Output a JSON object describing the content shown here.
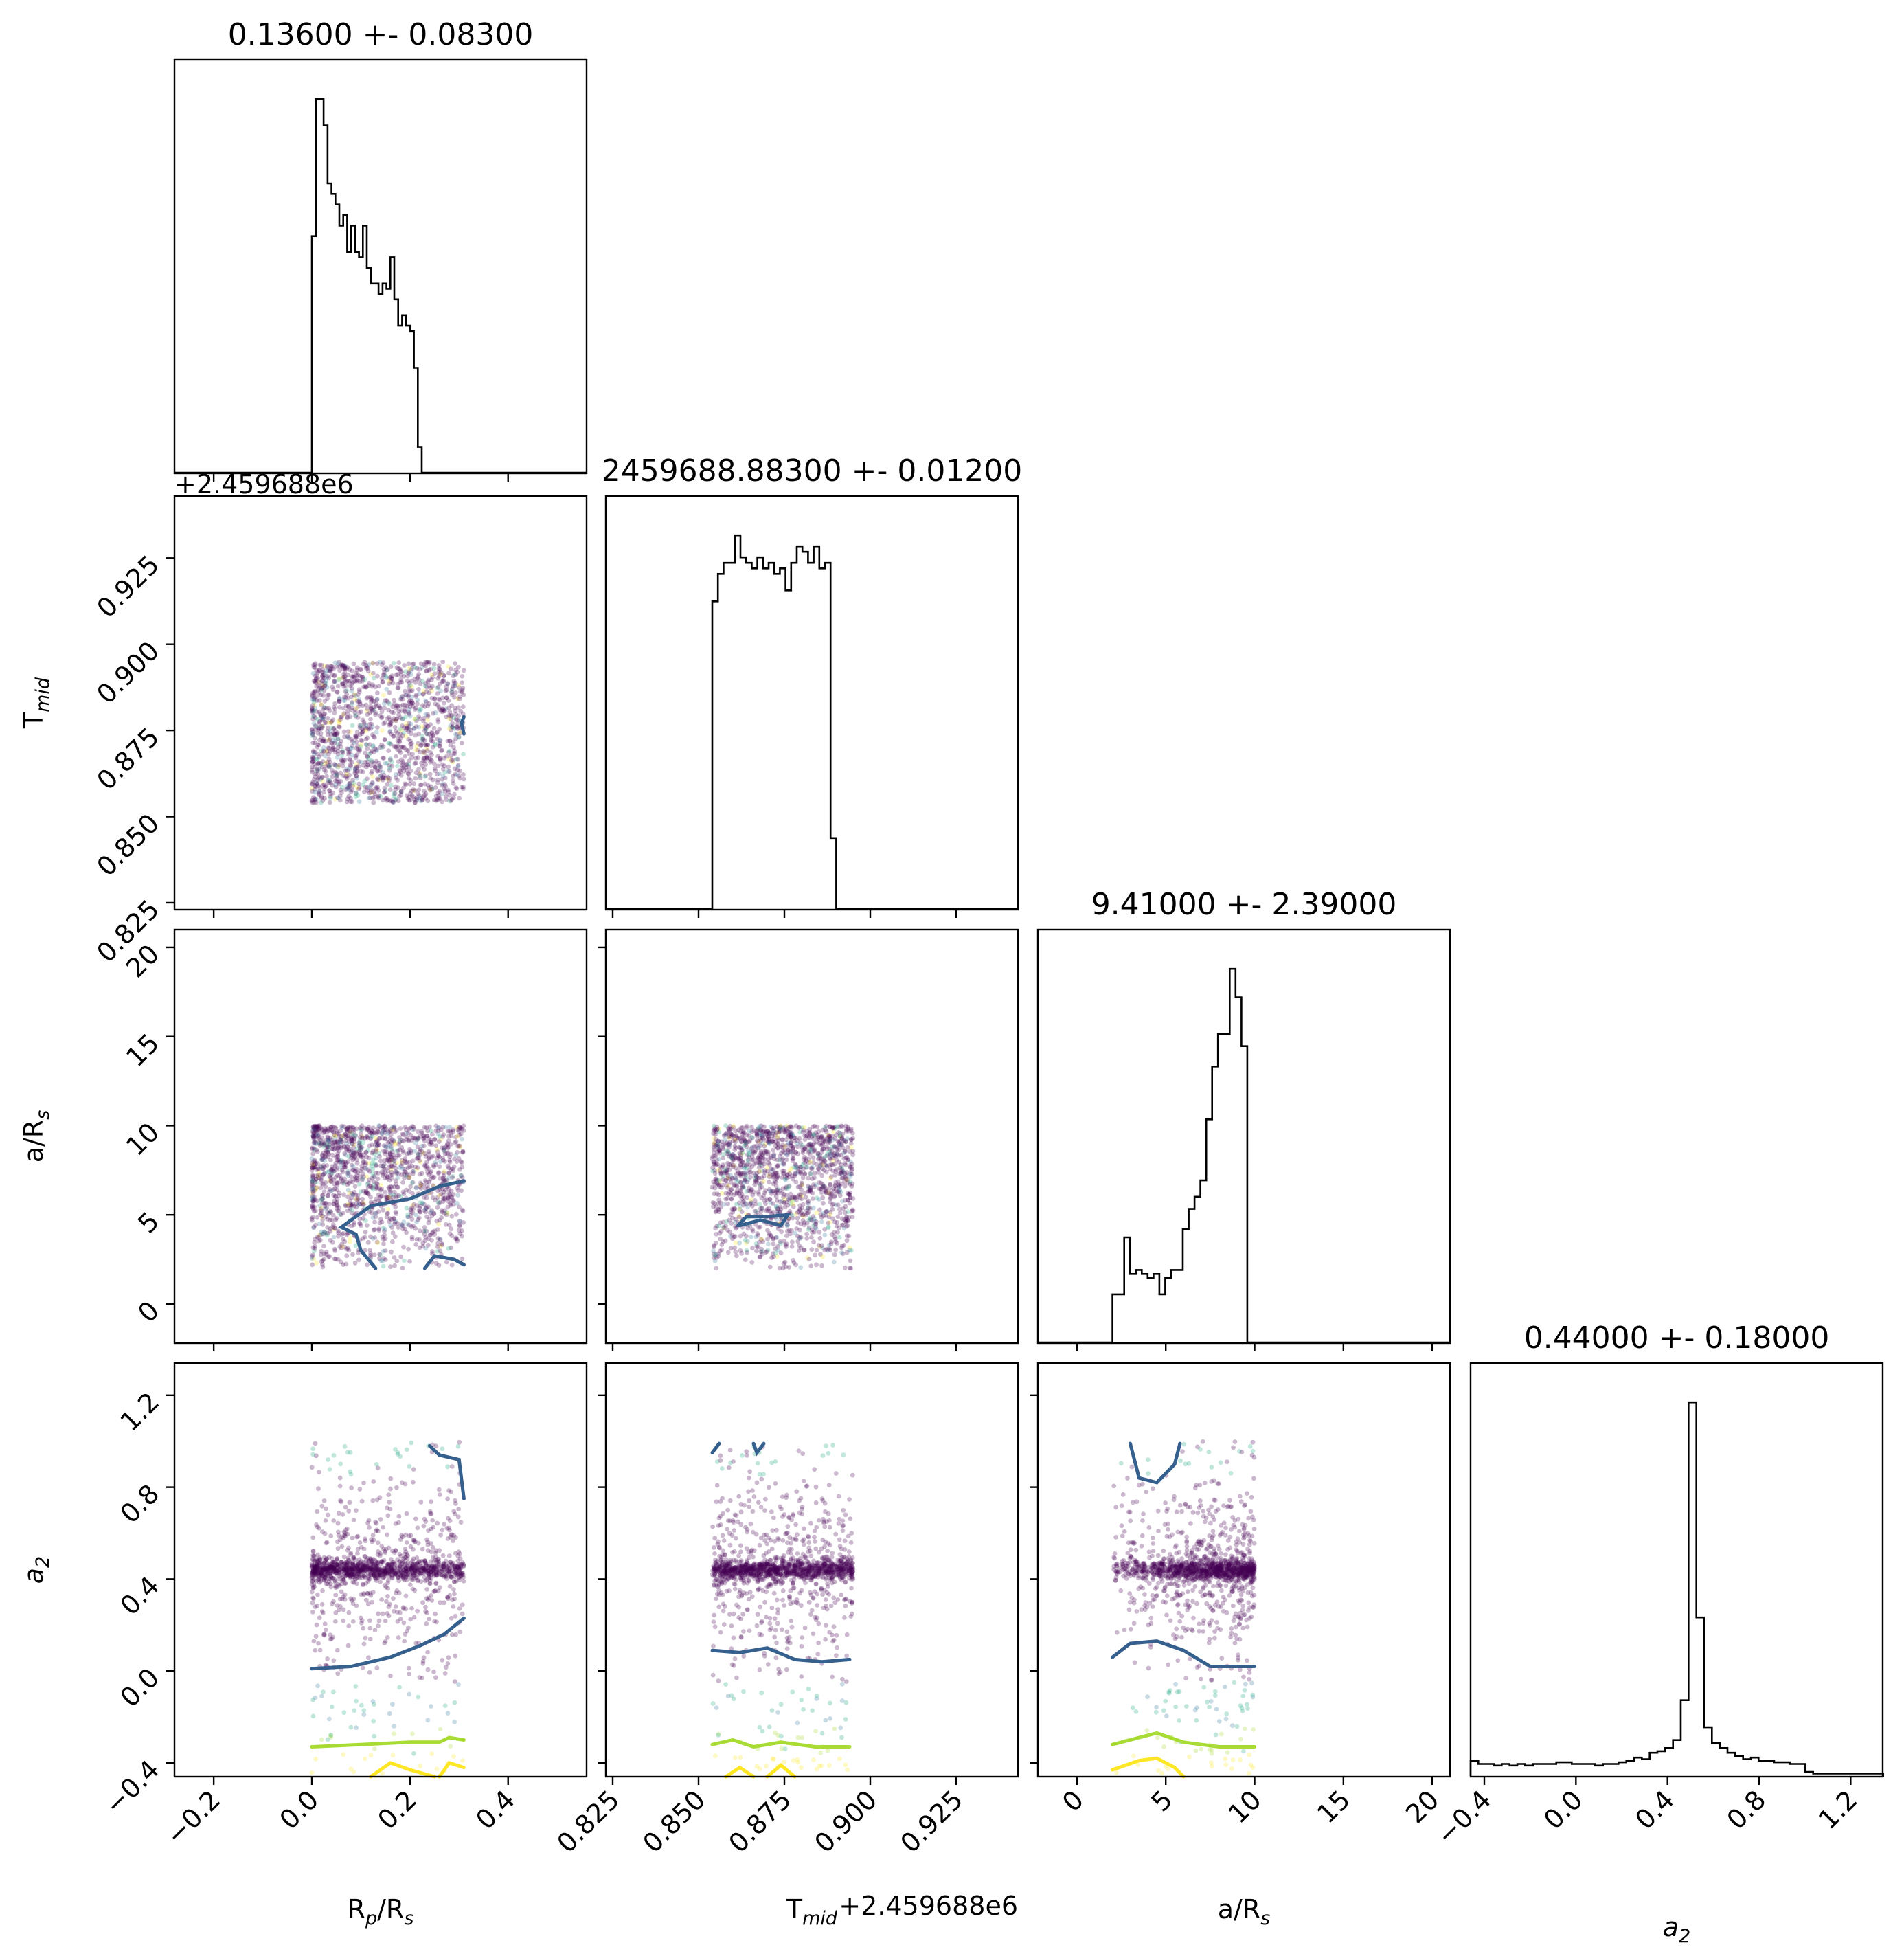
{
  "chart_data": {
    "type": "corner",
    "parameters": [
      {
        "key": "rprs",
        "label_main": "R",
        "label_sub": "p",
        "label_tail": "/R",
        "label_sub2": "s",
        "range": [
          -0.28,
          0.56
        ],
        "ticks": [
          -0.2,
          0.0,
          0.2,
          0.4
        ],
        "tick_labels": [
          "−0.2",
          "0.0",
          "0.2",
          "0.4"
        ],
        "offset_text": "",
        "samples_range": [
          0.0,
          0.31
        ]
      },
      {
        "key": "tmid",
        "label_main": "T",
        "label_sub": "mid",
        "label_tail": "",
        "label_sub2": "",
        "range": [
          0.823,
          0.943
        ],
        "ticks": [
          0.825,
          0.85,
          0.875,
          0.9,
          0.925
        ],
        "tick_labels": [
          "0.825",
          "0.850",
          "0.875",
          "0.900",
          "0.925"
        ],
        "offset_text": "+2.459688e6",
        "samples_range": [
          0.854,
          0.895
        ]
      },
      {
        "key": "ars",
        "label_main": "a/R",
        "label_sub": "s",
        "label_tail": "",
        "label_sub2": "",
        "range": [
          -2.2,
          21.0
        ],
        "ticks": [
          0,
          5,
          10,
          15,
          20
        ],
        "tick_labels": [
          "0",
          "5",
          "10",
          "15",
          "20"
        ],
        "offset_text": "",
        "samples_range": [
          2.0,
          10.0
        ]
      },
      {
        "key": "a2",
        "label_main": "a",
        "label_sub": "2",
        "label_tail": "",
        "label_sub2": "",
        "italic": true,
        "range": [
          -0.46,
          1.34
        ],
        "ticks": [
          -0.4,
          0.0,
          0.4,
          0.8,
          1.2
        ],
        "tick_labels": [
          "−0.4",
          "0.0",
          "0.4",
          "0.8",
          "1.2"
        ],
        "offset_text": "",
        "samples_range": [
          -0.45,
          1.0
        ]
      }
    ],
    "titles": [
      "0.13600 +- 0.08300",
      "2459688.88300 +- 0.01200",
      "9.41000 +- 2.39000",
      "0.44000 +- 0.18000"
    ],
    "top_offset_text": "+2.459688e6",
    "histograms": {
      "rprs": {
        "edges_start": 0.0,
        "bin_width": 0.008,
        "counts": [
          45,
          71,
          71,
          66,
          55,
          53,
          51,
          47,
          49,
          42,
          47,
          42,
          41,
          47,
          39,
          36,
          36,
          34,
          36,
          35,
          41,
          33,
          28,
          30,
          28,
          27,
          20,
          5
        ]
      },
      "tmid": {
        "edges_start": 0.854,
        "bin_width": 0.00164,
        "counts": [
          56,
          61,
          63,
          63,
          68,
          64,
          63,
          62,
          64,
          62,
          63,
          61,
          62,
          58,
          63,
          66,
          65,
          63,
          66,
          62,
          63,
          13
        ]
      },
      "ars": {
        "edges_start": 2.0,
        "bin_width": 0.33,
        "counts": [
          12,
          12,
          26,
          17,
          18,
          17,
          16,
          17,
          12,
          16,
          18,
          18,
          28,
          33,
          36,
          40,
          55,
          68,
          76,
          76,
          92,
          85,
          73
        ]
      },
      "a2": {
        "edges_start": -0.46,
        "bin_width": 0.034,
        "counts": [
          10,
          8,
          8,
          7,
          8,
          7,
          8,
          7,
          8,
          8,
          8,
          9,
          9,
          8,
          8,
          8,
          7,
          8,
          8,
          9,
          10,
          12,
          11,
          15,
          16,
          18,
          23,
          48,
          235,
          100,
          31,
          21,
          18,
          15,
          13,
          11,
          12,
          10,
          10,
          9,
          9,
          8,
          8,
          3,
          2,
          2,
          2,
          2,
          2,
          2,
          2,
          2,
          2
        ]
      }
    },
    "contour_colors": [
      "#355f8d",
      "#a8db34",
      "#fde725"
    ],
    "point_colors": {
      "dense": "#440154",
      "mid": "#3a7fa0",
      "teal": "#22a884",
      "light": "#a8db34",
      "yellow": "#fde725"
    },
    "grid": false,
    "legend": "none"
  }
}
